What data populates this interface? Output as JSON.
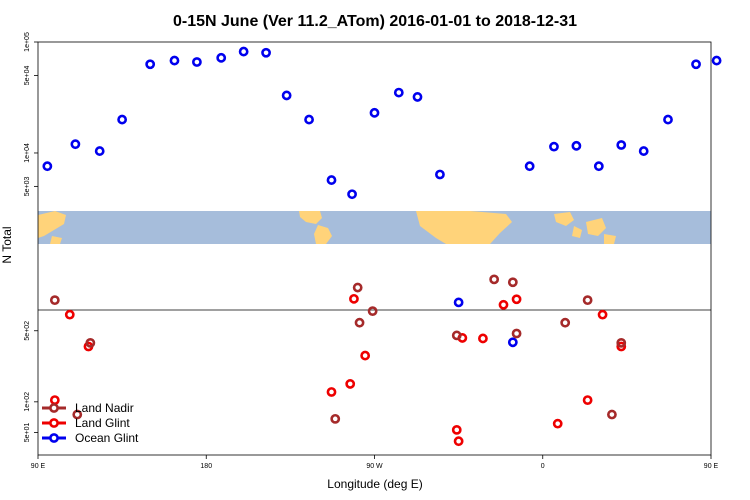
{
  "chart_data": {
    "type": "scatter",
    "title": "0-15N June (Ver 11.2_ATom)   2016-01-01 to 2018-12-31",
    "xlabel": "Longitude (deg E)",
    "ylabel": "N Total",
    "x_axis": {
      "range_deg": [
        90,
        450
      ],
      "ticks": [
        {
          "value": 90,
          "label": "90 E"
        },
        {
          "value": 180,
          "label": "180"
        },
        {
          "value": 270,
          "label": "90 W"
        },
        {
          "value": 360,
          "label": "0"
        },
        {
          "value": 450,
          "label": "90 E"
        },
        {
          "value": 540,
          "label": "180"
        }
      ]
    },
    "map_strip": {
      "land_color": "#ffd37a",
      "ocean_color": "#a6bddb"
    },
    "panels": [
      {
        "name": "upper",
        "scale": "log",
        "ylim": [
          3000,
          100000
        ],
        "ticks": [
          {
            "value": 5000,
            "label": "5e+03"
          },
          {
            "value": 10000,
            "label": "1e+04"
          },
          {
            "value": 50000,
            "label": "5e+04"
          },
          {
            "value": 100000,
            "label": "1e+05"
          }
        ]
      },
      {
        "name": "lower",
        "scale": "log",
        "ylim": [
          30,
          800
        ],
        "ticks": [
          {
            "value": 50,
            "label": "5e+01"
          },
          {
            "value": 100,
            "label": "1e+02"
          },
          {
            "value": 500,
            "label": "5e+02"
          }
        ]
      }
    ],
    "series": [
      {
        "name": "Ocean Glint",
        "color": "#0000ee",
        "points": [
          {
            "x": 95,
            "y": 7600
          },
          {
            "x": 110,
            "y": 12000
          },
          {
            "x": 123,
            "y": 10400
          },
          {
            "x": 135,
            "y": 20000
          },
          {
            "x": 150,
            "y": 63000
          },
          {
            "x": 163,
            "y": 68000
          },
          {
            "x": 175,
            "y": 66000
          },
          {
            "x": 188,
            "y": 72000
          },
          {
            "x": 200,
            "y": 82000
          },
          {
            "x": 212,
            "y": 80000
          },
          {
            "x": 223,
            "y": 33000
          },
          {
            "x": 235,
            "y": 20000
          },
          {
            "x": 247,
            "y": 5700
          },
          {
            "x": 258,
            "y": 4250
          },
          {
            "x": 270,
            "y": 23000
          },
          {
            "x": 283,
            "y": 35000
          },
          {
            "x": 293,
            "y": 32000
          },
          {
            "x": 305,
            "y": 6400
          },
          {
            "x": 315,
            "y": 950
          },
          {
            "x": 344,
            "y": 385
          },
          {
            "x": 353,
            "y": 7600
          },
          {
            "x": 366,
            "y": 11400
          },
          {
            "x": 378,
            "y": 11600
          },
          {
            "x": 390,
            "y": 7600
          },
          {
            "x": 402,
            "y": 11800
          },
          {
            "x": 414,
            "y": 10400
          },
          {
            "x": 427,
            "y": 20000
          },
          {
            "x": 442,
            "y": 63000
          },
          {
            "x": 453,
            "y": 68000
          }
        ]
      },
      {
        "name": "Land Glint",
        "color": "#ee0000",
        "points": [
          {
            "x": 99,
            "y": 104
          },
          {
            "x": 107,
            "y": 720
          },
          {
            "x": 117,
            "y": 350
          },
          {
            "x": 259,
            "y": 1030
          },
          {
            "x": 247,
            "y": 125
          },
          {
            "x": 257,
            "y": 150
          },
          {
            "x": 265,
            "y": 285
          },
          {
            "x": 314,
            "y": 53
          },
          {
            "x": 315,
            "y": 41
          },
          {
            "x": 317,
            "y": 425
          },
          {
            "x": 328,
            "y": 420
          },
          {
            "x": 339,
            "y": 900
          },
          {
            "x": 346,
            "y": 1020
          },
          {
            "x": 368,
            "y": 61
          },
          {
            "x": 384,
            "y": 104
          },
          {
            "x": 392,
            "y": 720
          },
          {
            "x": 402,
            "y": 350
          }
        ]
      },
      {
        "name": "Land Nadir",
        "color": "#a52a2a",
        "points": [
          {
            "x": 99,
            "y": 1000
          },
          {
            "x": 111,
            "y": 75
          },
          {
            "x": 118,
            "y": 380
          },
          {
            "x": 261,
            "y": 1330
          },
          {
            "x": 249,
            "y": 68
          },
          {
            "x": 262,
            "y": 600
          },
          {
            "x": 269,
            "y": 780
          },
          {
            "x": 314,
            "y": 450
          },
          {
            "x": 334,
            "y": 1600
          },
          {
            "x": 344,
            "y": 1500
          },
          {
            "x": 346,
            "y": 470
          },
          {
            "x": 372,
            "y": 600
          },
          {
            "x": 384,
            "y": 1000
          },
          {
            "x": 397,
            "y": 75
          },
          {
            "x": 402,
            "y": 380
          }
        ]
      }
    ],
    "legend": {
      "placement": "bottom-left",
      "entries": [
        {
          "name": "Land Nadir",
          "color": "#a52a2a"
        },
        {
          "name": "Land Glint",
          "color": "#ee0000"
        },
        {
          "name": "Ocean Glint",
          "color": "#0000ee"
        }
      ]
    }
  }
}
